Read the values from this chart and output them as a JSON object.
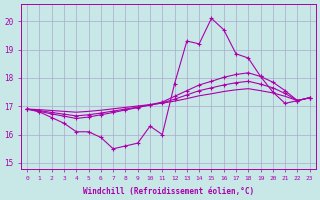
{
  "xlabel": "Windchill (Refroidissement éolien,°C)",
  "xlim": [
    -0.5,
    23.5
  ],
  "ylim": [
    14.8,
    20.6
  ],
  "yticks": [
    15,
    16,
    17,
    18,
    19,
    20
  ],
  "xticks": [
    0,
    1,
    2,
    3,
    4,
    5,
    6,
    7,
    8,
    9,
    10,
    11,
    12,
    13,
    14,
    15,
    16,
    17,
    18,
    19,
    20,
    21,
    22,
    23
  ],
  "bg_color": "#c8e8e8",
  "grid_color": "#aaaacc",
  "line_color": "#aa00aa",
  "series_main": [
    16.9,
    16.8,
    16.6,
    16.4,
    16.1,
    16.1,
    15.9,
    15.5,
    15.6,
    15.7,
    16.3,
    16.0,
    17.8,
    19.3,
    19.2,
    20.1,
    19.7,
    18.85,
    18.7,
    18.05,
    17.5,
    17.1,
    17.2,
    17.3
  ],
  "series_trend1": [
    16.9,
    16.82,
    16.73,
    16.65,
    16.57,
    16.62,
    16.7,
    16.78,
    16.87,
    16.95,
    17.05,
    17.15,
    17.35,
    17.55,
    17.75,
    17.88,
    18.02,
    18.12,
    18.18,
    18.05,
    17.85,
    17.55,
    17.2,
    17.3
  ],
  "series_trend2": [
    16.9,
    16.85,
    16.78,
    16.72,
    16.66,
    16.7,
    16.76,
    16.83,
    16.9,
    16.97,
    17.04,
    17.12,
    17.25,
    17.4,
    17.55,
    17.65,
    17.75,
    17.83,
    17.88,
    17.78,
    17.65,
    17.45,
    17.2,
    17.3
  ],
  "series_trend3": [
    16.9,
    16.88,
    16.85,
    16.82,
    16.79,
    16.82,
    16.86,
    16.91,
    16.96,
    17.01,
    17.06,
    17.11,
    17.18,
    17.27,
    17.37,
    17.44,
    17.52,
    17.58,
    17.62,
    17.55,
    17.47,
    17.35,
    17.2,
    17.3
  ]
}
